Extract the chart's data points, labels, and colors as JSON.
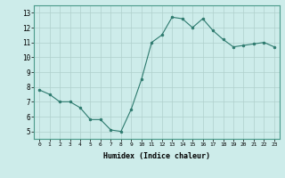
{
  "x": [
    0,
    1,
    2,
    3,
    4,
    5,
    6,
    7,
    8,
    9,
    10,
    11,
    12,
    13,
    14,
    15,
    16,
    17,
    18,
    19,
    20,
    21,
    22,
    23
  ],
  "y": [
    7.8,
    7.5,
    7.0,
    7.0,
    6.6,
    5.8,
    5.8,
    5.1,
    5.0,
    6.5,
    8.5,
    11.0,
    11.5,
    12.7,
    12.6,
    12.0,
    12.6,
    11.8,
    11.2,
    10.7,
    10.8,
    10.9,
    11.0,
    10.7
  ],
  "line_color": "#2d7a6e",
  "marker_color": "#2d7a6e",
  "bg_color": "#cdecea",
  "grid_color": "#b0d0cc",
  "xlabel": "Humidex (Indice chaleur)",
  "xlim": [
    -0.5,
    23.5
  ],
  "ylim": [
    4.5,
    13.5
  ],
  "yticks": [
    5,
    6,
    7,
    8,
    9,
    10,
    11,
    12,
    13
  ],
  "xticks": [
    0,
    1,
    2,
    3,
    4,
    5,
    6,
    7,
    8,
    9,
    10,
    11,
    12,
    13,
    14,
    15,
    16,
    17,
    18,
    19,
    20,
    21,
    22,
    23
  ],
  "xtick_labels": [
    "0",
    "1",
    "2",
    "3",
    "4",
    "5",
    "6",
    "7",
    "8",
    "9",
    "10",
    "11",
    "12",
    "13",
    "14",
    "15",
    "16",
    "17",
    "18",
    "19",
    "20",
    "21",
    "22",
    "23"
  ]
}
